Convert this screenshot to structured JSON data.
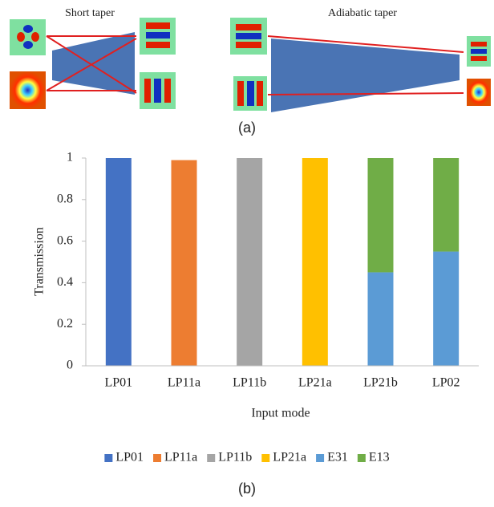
{
  "diagram": {
    "left_label": "Short taper",
    "right_label": "Adiabatic taper",
    "caption": "(a)"
  },
  "chart_data": {
    "type": "stacked_bar",
    "x_label": "Input mode",
    "y_label": "Transmission",
    "categories": [
      "LP01",
      "LP11a",
      "LP11b",
      "LP21a",
      "LP21b",
      "LP02"
    ],
    "series": [
      {
        "name": "LP01",
        "color": "#4472c4",
        "values": [
          1,
          null,
          null,
          null,
          null,
          null
        ]
      },
      {
        "name": "LP11a",
        "color": "#ed7d31",
        "values": [
          null,
          0.99,
          null,
          null,
          null,
          null
        ]
      },
      {
        "name": "LP11b",
        "color": "#a5a5a5",
        "values": [
          null,
          null,
          1,
          null,
          null,
          null
        ]
      },
      {
        "name": "LP21a",
        "color": "#ffc000",
        "values": [
          null,
          null,
          null,
          1,
          null,
          null
        ]
      },
      {
        "name": "E31",
        "color": "#5b9bd5",
        "values": [
          null,
          null,
          null,
          null,
          0.45,
          0.55
        ]
      },
      {
        "name": "E13",
        "color": "#70ad47",
        "values": [
          null,
          null,
          null,
          null,
          0.55,
          0.45
        ]
      }
    ],
    "ylim": [
      0,
      1
    ],
    "yticks": [
      0,
      0.2,
      0.4,
      0.6,
      0.8,
      1
    ],
    "grid": false,
    "legend": "bottom",
    "caption": "(b)"
  }
}
